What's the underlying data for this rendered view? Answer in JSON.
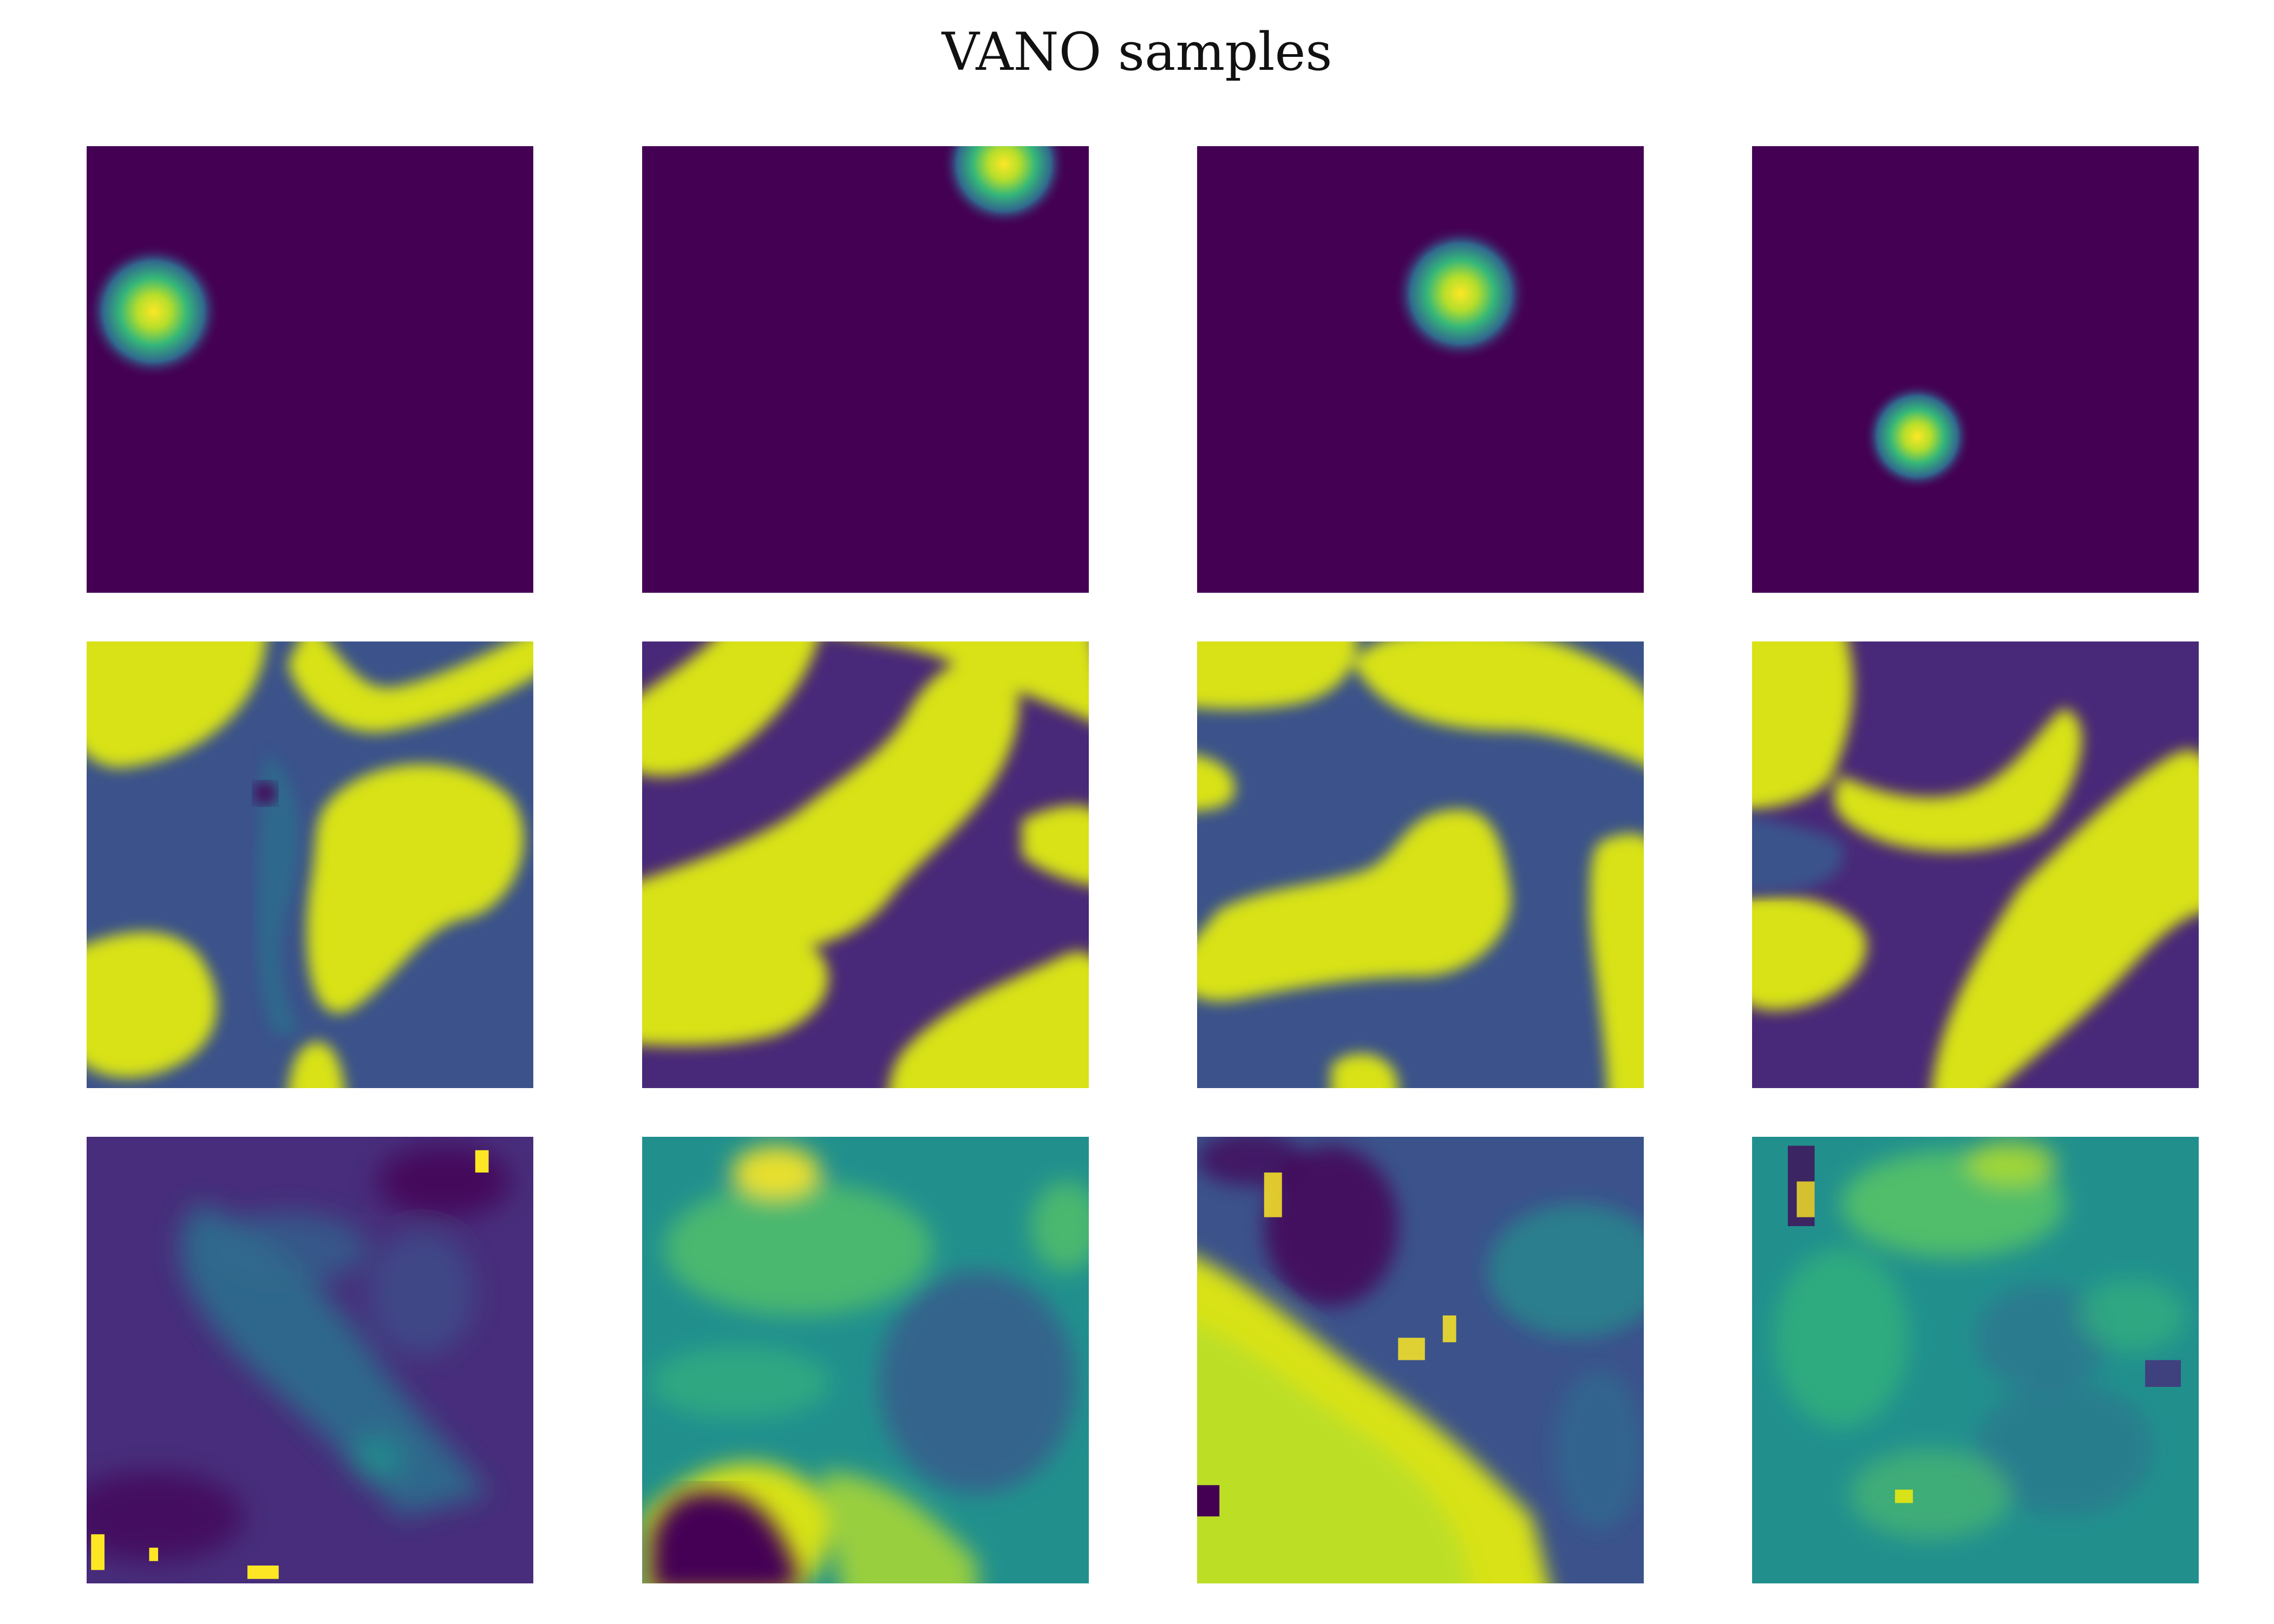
{
  "title": "VANO samples",
  "colormap": "viridis",
  "palette": {
    "viridis_dark": "#440154",
    "viridis_blue": "#3b528b",
    "viridis_teal": "#21908d",
    "viridis_green": "#5dc963",
    "viridis_yellow": "#fde725"
  },
  "grid": {
    "rows": 3,
    "cols": 4
  },
  "panels": [
    {
      "name": "row1-col1",
      "kind": "gaussian-bump"
    },
    {
      "name": "row1-col2",
      "kind": "gaussian-bump"
    },
    {
      "name": "row1-col3",
      "kind": "gaussian-bump"
    },
    {
      "name": "row1-col4",
      "kind": "gaussian-bump"
    },
    {
      "name": "row2-col1",
      "kind": "binary-field"
    },
    {
      "name": "row2-col2",
      "kind": "binary-field"
    },
    {
      "name": "row2-col3",
      "kind": "binary-field"
    },
    {
      "name": "row2-col4",
      "kind": "binary-field"
    },
    {
      "name": "row3-col1",
      "kind": "noisy-field"
    },
    {
      "name": "row3-col2",
      "kind": "noisy-field"
    },
    {
      "name": "row3-col3",
      "kind": "noisy-field"
    },
    {
      "name": "row3-col4",
      "kind": "noisy-field"
    }
  ]
}
